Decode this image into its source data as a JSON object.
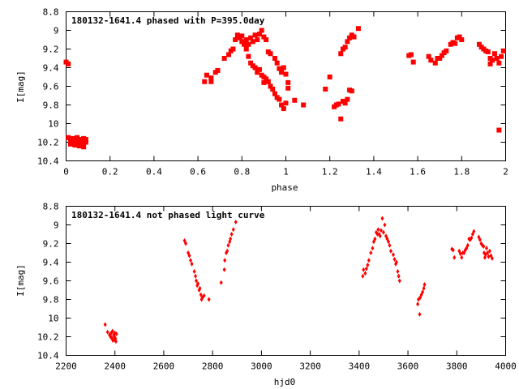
{
  "colors": {
    "points": "#ff0000",
    "axes": "#000000",
    "background": "#ffffff"
  },
  "chart_data": [
    {
      "type": "scatter",
      "title": "180132-1641.4 phased with P=395.0day",
      "xlabel": "phase",
      "ylabel": "I[mag]",
      "xlim": [
        0,
        2
      ],
      "ylim": [
        8.8,
        10.4
      ],
      "y_inverted": true,
      "x_ticks": [
        "0",
        "0.2",
        "0.4",
        "0.6",
        "0.8",
        "1",
        "1.2",
        "1.4",
        "1.6",
        "1.8",
        "2"
      ],
      "y_ticks": [
        "8.8",
        "9",
        "9.2",
        "9.4",
        "9.6",
        "9.8",
        "10",
        "10.2",
        "10.4"
      ],
      "marker": "filled-square",
      "points": [
        [
          0.0,
          9.34
        ],
        [
          0.01,
          9.36
        ],
        [
          0.01,
          10.15
        ],
        [
          0.02,
          10.18
        ],
        [
          0.02,
          10.22
        ],
        [
          0.03,
          10.16
        ],
        [
          0.03,
          10.2
        ],
        [
          0.04,
          10.23
        ],
        [
          0.04,
          10.17
        ],
        [
          0.05,
          10.21
        ],
        [
          0.05,
          10.15
        ],
        [
          0.06,
          10.19
        ],
        [
          0.06,
          10.24
        ],
        [
          0.07,
          10.17
        ],
        [
          0.07,
          10.21
        ],
        [
          0.08,
          10.16
        ],
        [
          0.08,
          10.25
        ],
        [
          0.09,
          10.2
        ],
        [
          0.09,
          10.17
        ],
        [
          0.63,
          9.55
        ],
        [
          0.64,
          9.48
        ],
        [
          0.66,
          9.51
        ],
        [
          0.66,
          9.55
        ],
        [
          0.68,
          9.45
        ],
        [
          0.69,
          9.43
        ],
        [
          0.72,
          9.3
        ],
        [
          0.74,
          9.26
        ],
        [
          0.75,
          9.22
        ],
        [
          0.76,
          9.2
        ],
        [
          0.77,
          9.1
        ],
        [
          0.78,
          9.05
        ],
        [
          0.79,
          9.08
        ],
        [
          0.8,
          9.12
        ],
        [
          0.8,
          9.06
        ],
        [
          0.81,
          9.15
        ],
        [
          0.82,
          9.1
        ],
        [
          0.82,
          9.2
        ],
        [
          0.83,
          9.15
        ],
        [
          0.84,
          9.08
        ],
        [
          0.85,
          9.12
        ],
        [
          0.86,
          9.05
        ],
        [
          0.87,
          9.1
        ],
        [
          0.88,
          9.04
        ],
        [
          0.89,
          9.0
        ],
        [
          0.9,
          9.07
        ],
        [
          0.91,
          9.1
        ],
        [
          0.83,
          9.28
        ],
        [
          0.84,
          9.35
        ],
        [
          0.85,
          9.38
        ],
        [
          0.86,
          9.4
        ],
        [
          0.87,
          9.45
        ],
        [
          0.88,
          9.42
        ],
        [
          0.89,
          9.48
        ],
        [
          0.9,
          9.5
        ],
        [
          0.9,
          9.56
        ],
        [
          0.91,
          9.52
        ],
        [
          0.92,
          9.55
        ],
        [
          0.93,
          9.6
        ],
        [
          0.94,
          9.63
        ],
        [
          0.95,
          9.68
        ],
        [
          0.96,
          9.72
        ],
        [
          0.97,
          9.74
        ],
        [
          0.98,
          9.8
        ],
        [
          0.99,
          9.84
        ],
        [
          1.0,
          9.78
        ],
        [
          0.92,
          9.23
        ],
        [
          0.93,
          9.25
        ],
        [
          0.95,
          9.3
        ],
        [
          0.96,
          9.35
        ],
        [
          0.97,
          9.41
        ],
        [
          0.98,
          9.45
        ],
        [
          0.99,
          9.4
        ],
        [
          1.0,
          9.47
        ],
        [
          1.01,
          9.56
        ],
        [
          1.01,
          9.62
        ],
        [
          1.04,
          9.75
        ],
        [
          1.08,
          9.8
        ],
        [
          1.18,
          9.63
        ],
        [
          1.2,
          9.5
        ],
        [
          1.22,
          9.82
        ],
        [
          1.23,
          9.8
        ],
        [
          1.24,
          9.79
        ],
        [
          1.25,
          9.95
        ],
        [
          1.26,
          9.76
        ],
        [
          1.27,
          9.78
        ],
        [
          1.28,
          9.74
        ],
        [
          1.29,
          9.64
        ],
        [
          1.3,
          9.65
        ],
        [
          1.25,
          9.25
        ],
        [
          1.26,
          9.2
        ],
        [
          1.27,
          9.18
        ],
        [
          1.28,
          9.12
        ],
        [
          1.29,
          9.08
        ],
        [
          1.3,
          9.05
        ],
        [
          1.31,
          9.07
        ],
        [
          1.33,
          8.98
        ],
        [
          1.56,
          9.27
        ],
        [
          1.57,
          9.26
        ],
        [
          1.58,
          9.34
        ],
        [
          1.65,
          9.28
        ],
        [
          1.66,
          9.32
        ],
        [
          1.68,
          9.35
        ],
        [
          1.69,
          9.3
        ],
        [
          1.7,
          9.3
        ],
        [
          1.71,
          9.27
        ],
        [
          1.72,
          9.24
        ],
        [
          1.73,
          9.22
        ],
        [
          1.75,
          9.15
        ],
        [
          1.76,
          9.13
        ],
        [
          1.77,
          9.14
        ],
        [
          1.78,
          9.08
        ],
        [
          1.79,
          9.07
        ],
        [
          1.8,
          9.1
        ],
        [
          1.88,
          9.15
        ],
        [
          1.89,
          9.18
        ],
        [
          1.9,
          9.2
        ],
        [
          1.91,
          9.22
        ],
        [
          1.92,
          9.23
        ],
        [
          1.93,
          9.3
        ],
        [
          1.93,
          9.36
        ],
        [
          1.94,
          9.32
        ],
        [
          1.95,
          9.25
        ],
        [
          1.96,
          9.3
        ],
        [
          1.97,
          9.35
        ],
        [
          1.98,
          9.28
        ],
        [
          1.99,
          9.22
        ],
        [
          1.97,
          10.07
        ]
      ]
    },
    {
      "type": "scatter",
      "title": "180132-1641.4 not phased light curve",
      "xlabel": "hjd0",
      "ylabel": "I[mag]",
      "xlim": [
        2200,
        4000
      ],
      "ylim": [
        8.8,
        10.4
      ],
      "y_inverted": true,
      "x_ticks": [
        "2200",
        "2400",
        "2600",
        "2800",
        "3000",
        "3200",
        "3400",
        "3600",
        "3800",
        "4000"
      ],
      "y_ticks": [
        "8.8",
        "9",
        "9.2",
        "9.4",
        "9.6",
        "9.8",
        "10",
        "10.2",
        "10.4"
      ],
      "marker": "filled-diamond",
      "points": [
        [
          2360,
          10.07
        ],
        [
          2370,
          10.15
        ],
        [
          2378,
          10.18
        ],
        [
          2382,
          10.2
        ],
        [
          2385,
          10.16
        ],
        [
          2388,
          10.22
        ],
        [
          2390,
          10.14
        ],
        [
          2392,
          10.24
        ],
        [
          2395,
          10.18
        ],
        [
          2398,
          10.2
        ],
        [
          2400,
          10.16
        ],
        [
          2402,
          10.22
        ],
        [
          2404,
          10.25
        ],
        [
          2406,
          10.17
        ],
        [
          2398,
          10.23
        ],
        [
          2387,
          10.21
        ],
        [
          2685,
          9.17
        ],
        [
          2690,
          9.2
        ],
        [
          2700,
          9.3
        ],
        [
          2705,
          9.33
        ],
        [
          2710,
          9.38
        ],
        [
          2715,
          9.42
        ],
        [
          2725,
          9.5
        ],
        [
          2730,
          9.55
        ],
        [
          2733,
          9.6
        ],
        [
          2737,
          9.65
        ],
        [
          2740,
          9.63
        ],
        [
          2745,
          9.7
        ],
        [
          2748,
          9.68
        ],
        [
          2752,
          9.75
        ],
        [
          2755,
          9.8
        ],
        [
          2758,
          9.78
        ],
        [
          2765,
          9.76
        ],
        [
          2785,
          9.8
        ],
        [
          2835,
          9.62
        ],
        [
          2848,
          9.48
        ],
        [
          2850,
          9.38
        ],
        [
          2856,
          9.3
        ],
        [
          2860,
          9.28
        ],
        [
          2864,
          9.22
        ],
        [
          2870,
          9.18
        ],
        [
          2873,
          9.15
        ],
        [
          2878,
          9.1
        ],
        [
          2885,
          9.05
        ],
        [
          2895,
          8.97
        ],
        [
          3415,
          9.55
        ],
        [
          3418,
          9.48
        ],
        [
          3425,
          9.52
        ],
        [
          3430,
          9.47
        ],
        [
          3435,
          9.43
        ],
        [
          3440,
          9.38
        ],
        [
          3448,
          9.3
        ],
        [
          3455,
          9.25
        ],
        [
          3460,
          9.18
        ],
        [
          3465,
          9.15
        ],
        [
          3470,
          9.08
        ],
        [
          3475,
          9.1
        ],
        [
          3478,
          9.05
        ],
        [
          3482,
          9.1
        ],
        [
          3486,
          9.12
        ],
        [
          3490,
          9.06
        ],
        [
          3495,
          8.93
        ],
        [
          3500,
          9.08
        ],
        [
          3505,
          9.0
        ],
        [
          3510,
          9.12
        ],
        [
          3515,
          9.15
        ],
        [
          3520,
          9.18
        ],
        [
          3525,
          9.22
        ],
        [
          3530,
          9.28
        ],
        [
          3540,
          9.32
        ],
        [
          3545,
          9.37
        ],
        [
          3550,
          9.42
        ],
        [
          3553,
          9.4
        ],
        [
          3558,
          9.5
        ],
        [
          3562,
          9.55
        ],
        [
          3566,
          9.6
        ],
        [
          3640,
          9.85
        ],
        [
          3643,
          9.8
        ],
        [
          3648,
          9.96
        ],
        [
          3650,
          9.78
        ],
        [
          3655,
          9.75
        ],
        [
          3660,
          9.72
        ],
        [
          3665,
          9.68
        ],
        [
          3668,
          9.64
        ],
        [
          3780,
          9.26
        ],
        [
          3785,
          9.27
        ],
        [
          3790,
          9.35
        ],
        [
          3810,
          9.28
        ],
        [
          3815,
          9.31
        ],
        [
          3820,
          9.35
        ],
        [
          3825,
          9.3
        ],
        [
          3830,
          9.3
        ],
        [
          3835,
          9.27
        ],
        [
          3840,
          9.25
        ],
        [
          3845,
          9.22
        ],
        [
          3850,
          9.15
        ],
        [
          3855,
          9.16
        ],
        [
          3860,
          9.14
        ],
        [
          3865,
          9.1
        ],
        [
          3870,
          9.07
        ],
        [
          3890,
          9.13
        ],
        [
          3895,
          9.16
        ],
        [
          3900,
          9.2
        ],
        [
          3905,
          9.22
        ],
        [
          3910,
          9.23
        ],
        [
          3912,
          9.3
        ],
        [
          3915,
          9.35
        ],
        [
          3918,
          9.32
        ],
        [
          3922,
          9.25
        ],
        [
          3926,
          9.3
        ],
        [
          3930,
          9.34
        ],
        [
          3935,
          9.28
        ],
        [
          3940,
          9.33
        ],
        [
          3945,
          9.36
        ]
      ]
    }
  ]
}
